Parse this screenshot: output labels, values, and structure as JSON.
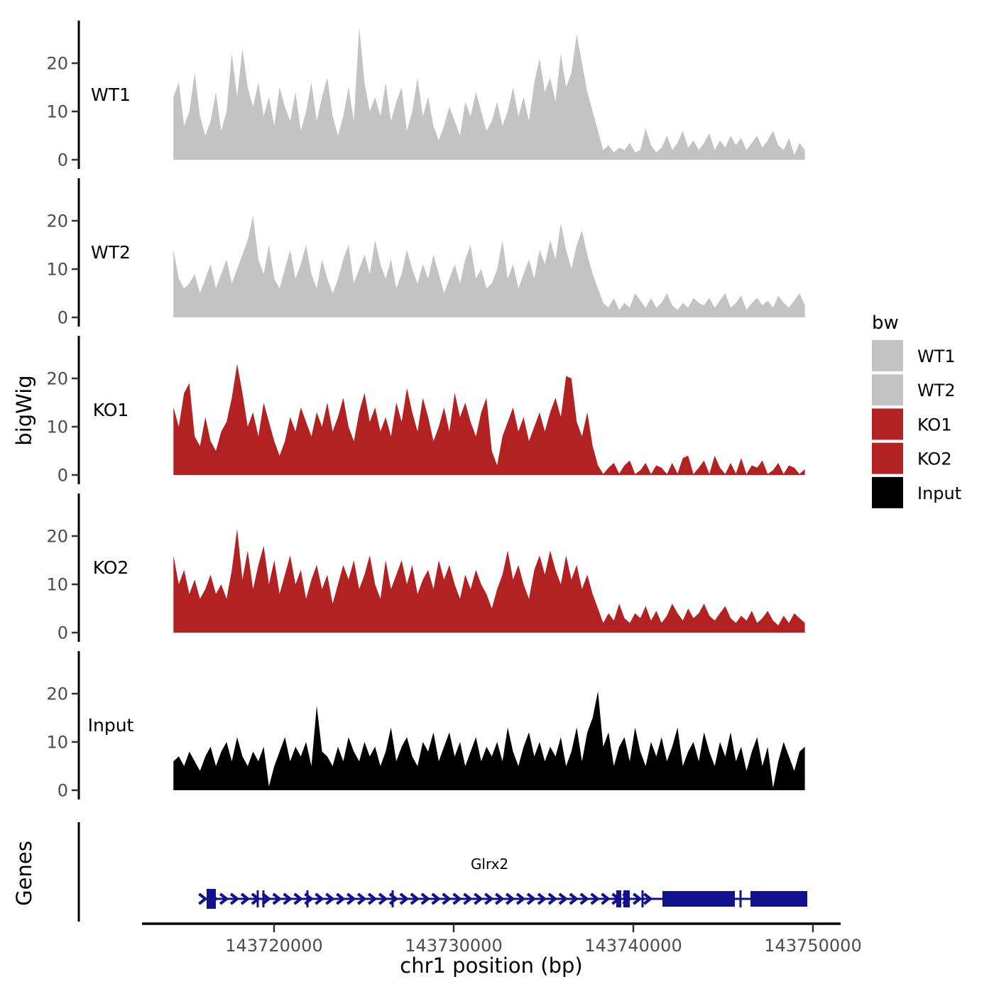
{
  "chart_data": {
    "type": "area",
    "title": "",
    "xlabel": "chr1 position (bp)",
    "panel_labels": {
      "coverage": "bigWig",
      "genes": "Genes"
    },
    "x_axis": {
      "ticks": [
        143720000,
        143730000,
        143740000,
        143750000
      ]
    },
    "y_axis": {
      "ticks": [
        0,
        10,
        20
      ],
      "ylim": [
        0,
        27.5
      ]
    },
    "coverage_x_range": [
      143714400,
      143749550
    ],
    "grid": "off",
    "legend": {
      "title": "bw",
      "position": "right",
      "entries": [
        {
          "label": "WT1",
          "color": "#c3c3c3"
        },
        {
          "label": "WT2",
          "color": "#c3c3c3"
        },
        {
          "label": "KO1",
          "color": "#b22222"
        },
        {
          "label": "KO2",
          "color": "#b22222"
        },
        {
          "label": "Input",
          "color": "#000000"
        }
      ]
    },
    "tracks": [
      {
        "name": "WT1",
        "color": "#c3c3c3",
        "values": [
          13,
          16,
          7,
          10,
          18,
          9,
          5,
          8,
          14,
          6,
          10,
          22,
          13,
          23,
          15,
          11,
          16,
          9,
          13,
          7,
          15,
          11,
          8,
          14,
          6,
          10,
          16,
          8,
          13,
          17,
          9,
          5,
          9,
          15,
          8,
          27.5,
          16,
          10,
          13,
          9,
          16,
          8,
          12,
          15,
          6,
          10,
          17,
          9,
          13,
          7,
          4,
          7,
          11,
          8,
          5,
          12,
          9,
          14,
          10,
          6,
          8,
          12,
          7,
          10,
          15,
          9,
          13,
          8,
          16,
          21,
          14,
          17,
          12,
          22,
          15,
          18,
          26,
          20,
          14,
          10,
          6,
          2,
          3,
          1.5,
          2.5,
          2,
          3.5,
          1.5,
          2,
          6.5,
          3,
          1.5,
          2.5,
          5,
          2,
          3.5,
          6,
          2.5,
          4,
          2,
          3.5,
          5.5,
          2,
          4,
          2.5,
          5,
          3,
          4.5,
          2,
          3.5,
          5,
          2.5,
          4,
          6,
          3,
          2,
          4.5,
          1,
          3.5,
          2
        ]
      },
      {
        "name": "WT2",
        "color": "#c3c3c3",
        "values": [
          14,
          8,
          6,
          7,
          9,
          5,
          8,
          11,
          6,
          9,
          12,
          7,
          10,
          13,
          16,
          21,
          12,
          9,
          15,
          8,
          6,
          10,
          14,
          8,
          11,
          15,
          9,
          6,
          12,
          8,
          5,
          8,
          12,
          15,
          7,
          10,
          13,
          9,
          16,
          11,
          8,
          12,
          6,
          9,
          14,
          10,
          7,
          11,
          8,
          13,
          9,
          5,
          8,
          11,
          7,
          12,
          15,
          8,
          10,
          6,
          7,
          10,
          16,
          8,
          11,
          6,
          9,
          12,
          8,
          14,
          11,
          16,
          12,
          19.5,
          14,
          10,
          15,
          18,
          13,
          9,
          6,
          3,
          2,
          4,
          1.5,
          3,
          2,
          5,
          3.5,
          2,
          4,
          2,
          3,
          5,
          2.5,
          1.5,
          3,
          2,
          4,
          3,
          2.5,
          4,
          2,
          3.5,
          5,
          2,
          3,
          4.5,
          1.5,
          3,
          4,
          2.5,
          3.5,
          2,
          4.5,
          3,
          2,
          3.5,
          5,
          2.5
        ]
      },
      {
        "name": "KO1",
        "color": "#b22222",
        "values": [
          14,
          10,
          17,
          19,
          8,
          6,
          12,
          7,
          5,
          9,
          11,
          16,
          23,
          17,
          10,
          13,
          8,
          15,
          11,
          7,
          4,
          7,
          12,
          9,
          14,
          11,
          8,
          13,
          10,
          15,
          9,
          12,
          16,
          10,
          7,
          13,
          17,
          11,
          14,
          9,
          12,
          8,
          15,
          11,
          18,
          13,
          9,
          16,
          12,
          7,
          10,
          14,
          9,
          17,
          12,
          15,
          11,
          8,
          13,
          16,
          5,
          2,
          8,
          11,
          14,
          9,
          12,
          7,
          10,
          13,
          9,
          13,
          16,
          12,
          20.5,
          20,
          11,
          8,
          13,
          6,
          2,
          0.2,
          1.5,
          2.5,
          0.3,
          2,
          3,
          0.2,
          1,
          2.5,
          0.2,
          2,
          1.5,
          0.2,
          2.5,
          0.3,
          3.5,
          4,
          0.2,
          1.5,
          3,
          0.2,
          4,
          1.5,
          0.2,
          2.5,
          0.3,
          3.5,
          0.2,
          2,
          1.5,
          3,
          0.2,
          1,
          2.5,
          0.2,
          2,
          1.5,
          0.2,
          1.2
        ]
      },
      {
        "name": "KO2",
        "color": "#b22222",
        "values": [
          16,
          10,
          13,
          8,
          11,
          7,
          9,
          12,
          8,
          10,
          7,
          13,
          21.5,
          11,
          17,
          9,
          14,
          18,
          10,
          15,
          8,
          12,
          16,
          10,
          13,
          7,
          11,
          14,
          9,
          12,
          6,
          10,
          14,
          11,
          15,
          9,
          12,
          16,
          10,
          7,
          15,
          9,
          12,
          15,
          10,
          14,
          8,
          11,
          13,
          9,
          15,
          11,
          14,
          10,
          7,
          12,
          9,
          13,
          10,
          8,
          5,
          9,
          12,
          17,
          11,
          14,
          10,
          7,
          13,
          16,
          12,
          17,
          13,
          10,
          16,
          11,
          14,
          9,
          12,
          8,
          5,
          2,
          4,
          2.5,
          6,
          3,
          2,
          4,
          3,
          5.5,
          2.5,
          4.5,
          2,
          3.5,
          6,
          4,
          2.5,
          5,
          3,
          4,
          6,
          3.5,
          2.5,
          4,
          5.5,
          3,
          2,
          3.5,
          2.5,
          4.5,
          2,
          3,
          4.5,
          2.5,
          1.5,
          3.5,
          2,
          4,
          3,
          2
        ]
      },
      {
        "name": "Input",
        "color": "#000000",
        "values": [
          6,
          7,
          5,
          8,
          6,
          4,
          7,
          9,
          5,
          8,
          10,
          6,
          11,
          7,
          5,
          8,
          6,
          9,
          0.8,
          5,
          8,
          11,
          6,
          9,
          7,
          10,
          5,
          17.5,
          8,
          7,
          5,
          9,
          6,
          11,
          8,
          6,
          10,
          7,
          9,
          5,
          8,
          13,
          6,
          9,
          11,
          7,
          5,
          10,
          8,
          12,
          6,
          9,
          12,
          7,
          10,
          5,
          8,
          11,
          6,
          9,
          7,
          10,
          6,
          13,
          8,
          5,
          9,
          12,
          7,
          10,
          6,
          9,
          7,
          11,
          5,
          8,
          13,
          6,
          12,
          15,
          20.5,
          9,
          12,
          5,
          9,
          11,
          6,
          13,
          8,
          5,
          10,
          7,
          11,
          6,
          9,
          13,
          5,
          8,
          10,
          6,
          12,
          8,
          5,
          10,
          7,
          12,
          6,
          9,
          4,
          8,
          11,
          5,
          9,
          0.5,
          6,
          10,
          7,
          4,
          8,
          9
        ]
      }
    ],
    "gene_track": {
      "gene_label": "Glrx2",
      "color": "#12128f",
      "strand": "+",
      "line": [
        143716200,
        143749684
      ],
      "start_box": [
        143716245,
        143716760
      ],
      "exon_ticks": [
        143719091,
        143719407,
        143721858,
        143726601,
        143740514,
        143745968
      ],
      "small_boxes": [
        [
          143739051,
          143739328
        ],
        [
          143739447,
          143739802
        ]
      ],
      "big_boxes": [
        [
          143741621,
          143745652
        ],
        [
          143746521,
          143749684
        ]
      ],
      "arrows": {
        "from": 143716100,
        "to": 143741300,
        "spacing_bp": 590
      },
      "label_pos": 143732000
    }
  }
}
